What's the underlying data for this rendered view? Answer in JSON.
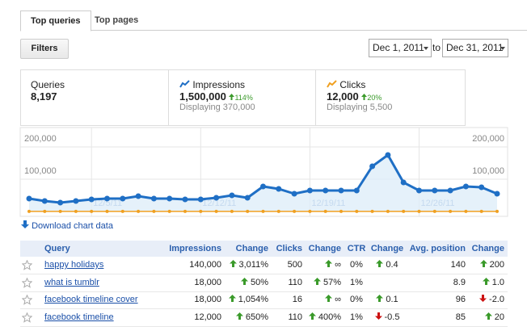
{
  "tabs": [
    "Top queries",
    "Top pages"
  ],
  "filters": "Filters",
  "date_range": {
    "start": "Dec 1, 2011",
    "separator": "to",
    "end": "Dec 31, 2011"
  },
  "summary": [
    {
      "label": "Queries",
      "value": "8,197"
    },
    {
      "value": "1,500,000",
      "change": "114%",
      "displaying": "Displaying 370,000"
    },
    {
      "value": "12,000",
      "change": "20%",
      "displaying": "Displaying 5,500"
    }
  ],
  "chart_data": {
    "type": "line",
    "categories": [
      null,
      null,
      null,
      null,
      "12/5/11",
      null,
      null,
      null,
      null,
      null,
      null,
      "12/12/11",
      null,
      null,
      null,
      null,
      null,
      null,
      "12/19/11",
      null,
      null,
      null,
      null,
      null,
      null,
      "12/26/11",
      null,
      null,
      null,
      null,
      null
    ],
    "series": [
      {
        "name": "Impressions",
        "color": "#1f6fc5",
        "values": [
          40000,
          32500,
          27500,
          32500,
          37500,
          40000,
          40000,
          47500,
          40000,
          40000,
          37500,
          37500,
          42500,
          50000,
          42500,
          77500,
          70000,
          55000,
          65000,
          65000,
          65000,
          65000,
          140000,
          175000,
          90000,
          65000,
          65000,
          65000,
          77500,
          75000,
          55000
        ]
      },
      {
        "name": "Clicks",
        "color": "#f0a020",
        "values": [
          400,
          400,
          400,
          400,
          400,
          400,
          400,
          400,
          400,
          400,
          400,
          400,
          400,
          400,
          400,
          400,
          400,
          400,
          400,
          400,
          400,
          400,
          400,
          400,
          400,
          400,
          400,
          400,
          400,
          400,
          400
        ]
      }
    ],
    "ylim": [
      0,
      250000
    ],
    "yticks": [
      {
        "value": 100000,
        "label": "100,000"
      },
      {
        "value": 200000,
        "label": "200,000"
      }
    ],
    "grid": true
  },
  "download": "Download chart data",
  "table": {
    "headers": [
      "Query",
      "Impressions",
      "Change",
      "Clicks",
      "Change",
      "CTR",
      "Change",
      "Avg. position",
      "Change"
    ],
    "rows": [
      [
        "happy holidays",
        "140,000",
        {
          "text": "3,011%",
          "dir": "up"
        },
        "500",
        {
          "text": "∞",
          "dir": "up"
        },
        "0%",
        {
          "text": "0.4",
          "dir": "up"
        },
        "140",
        {
          "text": "200",
          "dir": "up"
        }
      ],
      [
        "what is tumblr",
        "18,000",
        {
          "text": "50%",
          "dir": "up"
        },
        "110",
        {
          "text": "57%",
          "dir": "up"
        },
        "1%",
        null,
        "8.9",
        {
          "text": "1.0",
          "dir": "up"
        }
      ],
      [
        "facebook timeline cover",
        "18,000",
        {
          "text": "1,054%",
          "dir": "up"
        },
        "16",
        {
          "text": "∞",
          "dir": "up"
        },
        "0%",
        {
          "text": "0.1",
          "dir": "up"
        },
        "96",
        {
          "text": "-2.0",
          "dir": "down"
        }
      ],
      [
        "facebook timeline",
        "12,000",
        {
          "text": "650%",
          "dir": "up"
        },
        "110",
        {
          "text": "400%",
          "dir": "up"
        },
        "1%",
        {
          "text": "-0.5",
          "dir": "down"
        },
        "85",
        {
          "text": "20",
          "dir": "up"
        }
      ]
    ]
  }
}
